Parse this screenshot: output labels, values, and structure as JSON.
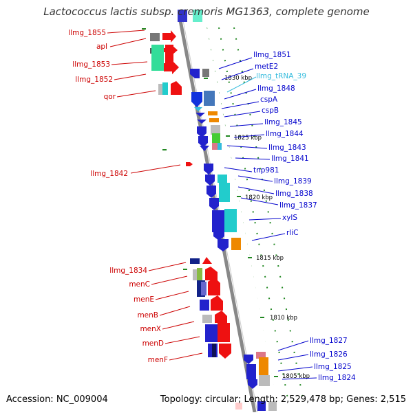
{
  "title": "Lactococcus lactis subsp. cremoris MG1363, complete genome",
  "accession": "Accession: NC_009004",
  "topology": "Topology: circular; Length: 2,529,478 bp; Genes: 2,515",
  "colors": {
    "left_label": "#cc0000",
    "right_label": "#0000cc",
    "trna_label": "#33bbdd",
    "backbone": "#888888",
    "tick": "#228822"
  },
  "kbp_ticks": [
    "1830 kbp",
    "1825 kbp",
    "1820 kbp",
    "1815 kbp",
    "1810 kbp",
    "1805 kbp"
  ],
  "left_genes": [
    {
      "label": "llmg_1855"
    },
    {
      "label": "apl"
    },
    {
      "label": "llmg_1853"
    },
    {
      "label": "llmg_1852"
    },
    {
      "label": "qor"
    },
    {
      "label": "llmg_1842"
    },
    {
      "label": "llmg_1834"
    },
    {
      "label": "menC"
    },
    {
      "label": "menE"
    },
    {
      "label": "menB"
    },
    {
      "label": "menX"
    },
    {
      "label": "menD"
    },
    {
      "label": "menF"
    }
  ],
  "right_genes": [
    {
      "label": "llmg_1851"
    },
    {
      "label": "metE2"
    },
    {
      "label": "llmg_tRNA_39"
    },
    {
      "label": "llmg_1848"
    },
    {
      "label": "cspA"
    },
    {
      "label": "cspB"
    },
    {
      "label": "llmg_1845"
    },
    {
      "label": "llmg_1844"
    },
    {
      "label": "llmg_1843"
    },
    {
      "label": "llmg_1841"
    },
    {
      "label": "tnp981"
    },
    {
      "label": "llmg_1839"
    },
    {
      "label": "llmg_1838"
    },
    {
      "label": "llmg_1837"
    },
    {
      "label": "xylS"
    },
    {
      "label": "rliC"
    },
    {
      "label": "llmg_1827"
    },
    {
      "label": "llmg_1826"
    },
    {
      "label": "llmg_1825"
    },
    {
      "label": "llmg_1824"
    }
  ]
}
